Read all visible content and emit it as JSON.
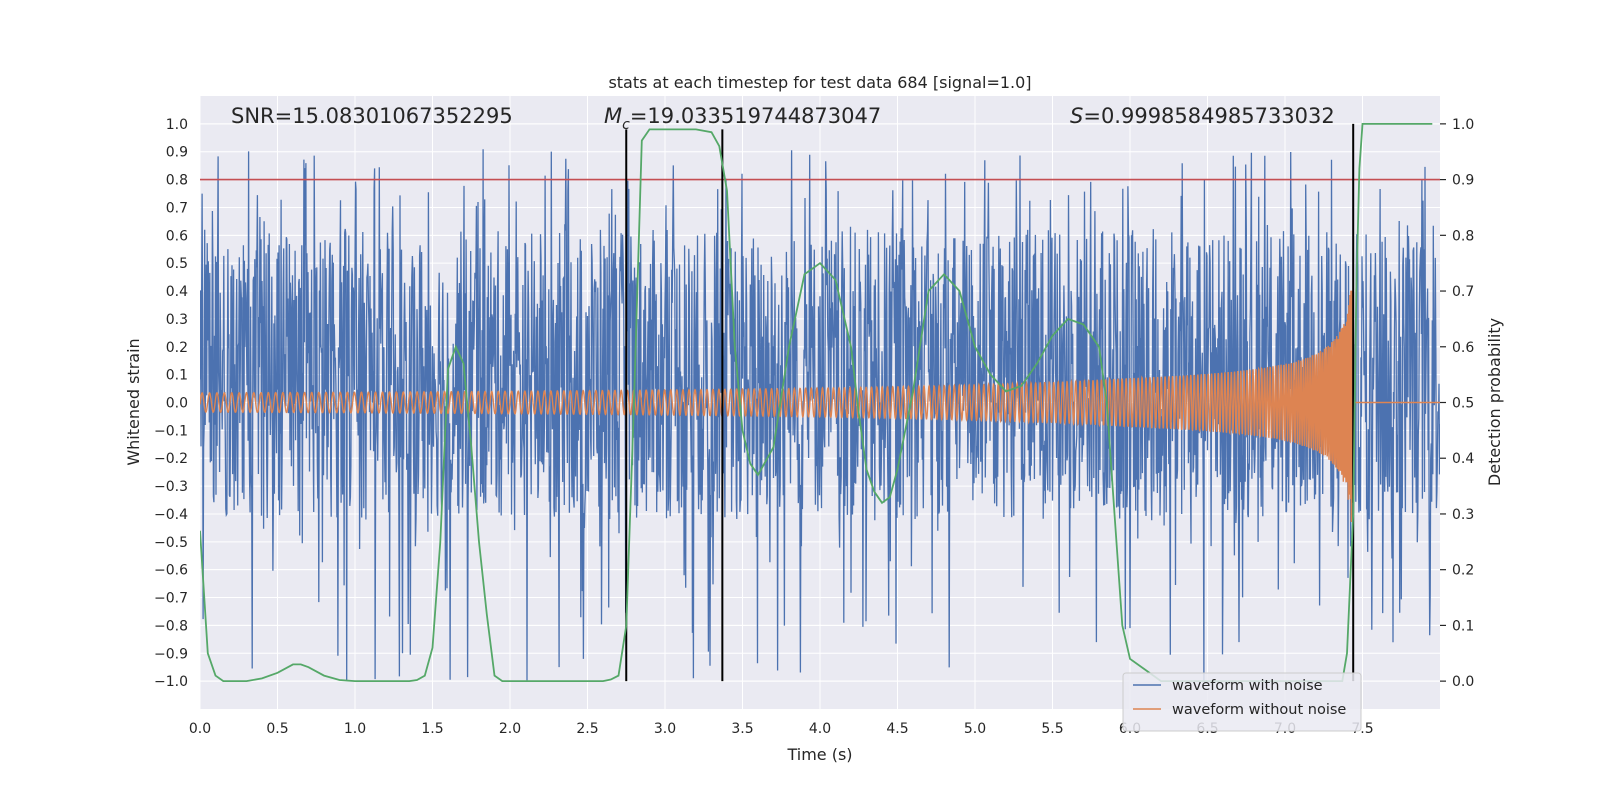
{
  "chart_data": {
    "type": "line",
    "title": "stats at each timestep for test data 684 [signal=1.0]",
    "xlabel": "Time (s)",
    "ylabel_left": "Whitened strain",
    "ylabel_right": "Detection probability",
    "xlim": [
      0.0,
      8.0
    ],
    "ylim_left": [
      -1.1,
      1.1
    ],
    "ylim_right": [
      -0.05,
      1.05
    ],
    "xticks": [
      0.0,
      0.5,
      1.0,
      1.5,
      2.0,
      2.5,
      3.0,
      3.5,
      4.0,
      4.5,
      5.0,
      5.5,
      6.0,
      6.5,
      7.0,
      7.5
    ],
    "xtick_labels": [
      "0.0",
      "0.5",
      "1.0",
      "1.5",
      "2.0",
      "2.5",
      "3.0",
      "3.5",
      "4.0",
      "4.5",
      "5.0",
      "5.5",
      "6.0",
      "6.5",
      "7.0",
      "7.5"
    ],
    "yticks_left": [
      -1.0,
      -0.9,
      -0.8,
      -0.7,
      -0.6,
      -0.5,
      -0.4,
      -0.3,
      -0.2,
      -0.1,
      0.0,
      0.1,
      0.2,
      0.3,
      0.4,
      0.5,
      0.6,
      0.7,
      0.8,
      0.9,
      1.0
    ],
    "ytick_labels_left": [
      "−1.0",
      "−0.9",
      "−0.8",
      "−0.7",
      "−0.6",
      "−0.5",
      "−0.4",
      "−0.3",
      "−0.2",
      "−0.1",
      "0.0",
      "0.1",
      "0.2",
      "0.3",
      "0.4",
      "0.5",
      "0.6",
      "0.7",
      "0.8",
      "0.9",
      "1.0"
    ],
    "yticks_right": [
      0.0,
      0.1,
      0.2,
      0.3,
      0.4,
      0.5,
      0.6,
      0.7,
      0.8,
      0.9,
      1.0
    ],
    "ytick_labels_right": [
      "0.0",
      "0.1",
      "0.2",
      "0.3",
      "0.4",
      "0.5",
      "0.6",
      "0.7",
      "0.8",
      "0.9",
      "1.0"
    ],
    "annotations": {
      "snr": "SNR=15.08301067352295",
      "mc_symbol": "M",
      "mc_sub": "c",
      "mc_value": "=19.033519744873047",
      "s_symbol": "S",
      "s_value": "=0.9998584985733032"
    },
    "threshold": {
      "value": 0.9,
      "axis": "right",
      "color": "#c44e52"
    },
    "vertical_markers": [
      {
        "x": 2.75,
        "y_top": 0.99,
        "y_bottom": 0.0,
        "axis": "right"
      },
      {
        "x": 3.37,
        "y_top": 0.99,
        "y_bottom": 0.0,
        "axis": "right"
      },
      {
        "x": 7.44,
        "y_top": 1.0,
        "y_bottom": 0.0,
        "axis": "right"
      }
    ],
    "series": [
      {
        "name": "waveform with noise",
        "axis": "left",
        "color": "#4c72b0",
        "kind": "noise",
        "band": [
          -0.42,
          0.62
        ],
        "spike_range": [
          -1.0,
          0.91
        ]
      },
      {
        "name": "waveform without noise",
        "axis": "left",
        "color": "#dd8452",
        "kind": "chirp",
        "merger_time": 7.44,
        "peak_amplitude": 0.52
      },
      {
        "name": "detection probability",
        "axis": "right",
        "color": "#55a868",
        "x": [
          0.0,
          0.05,
          0.1,
          0.15,
          0.2,
          0.3,
          0.4,
          0.5,
          0.6,
          0.65,
          0.7,
          0.8,
          0.9,
          1.0,
          1.2,
          1.3,
          1.35,
          1.4,
          1.45,
          1.5,
          1.55,
          1.6,
          1.65,
          1.7,
          1.75,
          1.8,
          1.85,
          1.9,
          1.95,
          2.0,
          2.5,
          2.6,
          2.65,
          2.7,
          2.75,
          2.8,
          2.85,
          2.9,
          3.0,
          3.1,
          3.2,
          3.3,
          3.35,
          3.4,
          3.45,
          3.5,
          3.55,
          3.6,
          3.7,
          3.8,
          3.9,
          4.0,
          4.1,
          4.2,
          4.25,
          4.3,
          4.35,
          4.4,
          4.45,
          4.5,
          4.6,
          4.7,
          4.8,
          4.9,
          5.0,
          5.1,
          5.2,
          5.3,
          5.4,
          5.5,
          5.6,
          5.7,
          5.8,
          5.85,
          5.9,
          5.95,
          6.0,
          6.2,
          6.5,
          7.0,
          7.3,
          7.37,
          7.4,
          7.44,
          7.46,
          7.48,
          7.5,
          7.6,
          7.95
        ],
        "values": [
          0.27,
          0.05,
          0.01,
          0.0,
          0.0,
          0.0,
          0.005,
          0.015,
          0.03,
          0.03,
          0.025,
          0.01,
          0.002,
          0.0,
          0.0,
          0.0,
          0.0,
          0.002,
          0.01,
          0.06,
          0.25,
          0.56,
          0.6,
          0.57,
          0.42,
          0.25,
          0.12,
          0.01,
          0.0,
          0.0,
          0.0,
          0.0,
          0.003,
          0.01,
          0.1,
          0.5,
          0.97,
          0.99,
          0.99,
          0.99,
          0.99,
          0.985,
          0.96,
          0.88,
          0.6,
          0.45,
          0.39,
          0.37,
          0.42,
          0.6,
          0.73,
          0.75,
          0.72,
          0.6,
          0.48,
          0.38,
          0.34,
          0.32,
          0.33,
          0.38,
          0.52,
          0.7,
          0.73,
          0.7,
          0.6,
          0.55,
          0.52,
          0.53,
          0.57,
          0.62,
          0.65,
          0.64,
          0.6,
          0.5,
          0.3,
          0.1,
          0.04,
          0.0,
          0.0,
          0.0,
          0.0,
          0.0,
          0.05,
          0.3,
          0.7,
          0.92,
          1.0,
          1.0,
          1.0
        ]
      }
    ],
    "legend": {
      "placement": "bottom-right",
      "entries": [
        {
          "label": "waveform with noise",
          "color": "#4c72b0"
        },
        {
          "label": "waveform without noise",
          "color": "#dd8452"
        }
      ]
    },
    "colors": {
      "plot_bg": "#eaeaf2",
      "grid": "#ffffff",
      "marker": "#000000"
    }
  }
}
